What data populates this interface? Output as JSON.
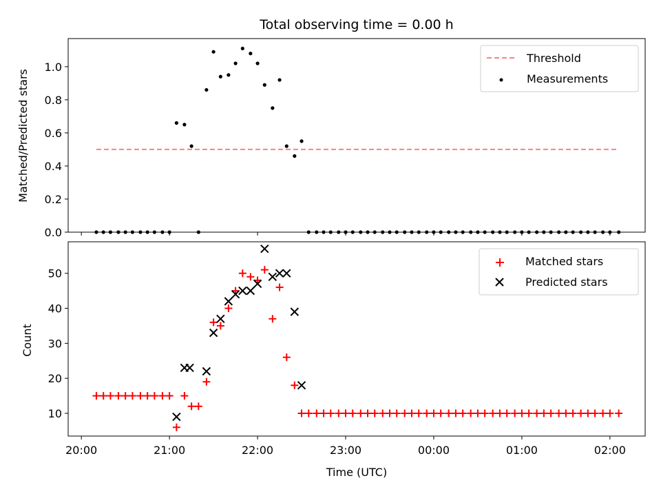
{
  "chart_data": [
    {
      "type": "scatter",
      "title": "Total observing time = 0.00 h",
      "xlabel": "",
      "ylabel": "Matched/Predicted stars",
      "x_unit": "hours since 20:00 UTC",
      "xlim": [
        -0.15,
        6.4
      ],
      "ylim": [
        0,
        1.17
      ],
      "yticks": [
        0.0,
        0.2,
        0.4,
        0.6,
        0.8,
        1.0
      ],
      "ytick_labels": [
        "0.0",
        "0.2",
        "0.4",
        "0.6",
        "0.8",
        "1.0"
      ],
      "grid": false,
      "legend": "top-right",
      "threshold": {
        "name": "Threshold",
        "value": 0.5,
        "x": [
          0.17,
          6.1
        ],
        "color": "#ff7f7f"
      },
      "series": [
        {
          "name": "Measurements",
          "color": "#000000",
          "marker": "dot",
          "x": [
            0.17,
            0.25,
            0.33,
            0.42,
            0.5,
            0.58,
            0.67,
            0.75,
            0.83,
            0.92,
            1.0,
            1.08,
            1.17,
            1.25,
            1.33,
            1.42,
            1.5,
            1.58,
            1.67,
            1.75,
            1.83,
            1.92,
            2.0,
            2.08,
            2.17,
            2.25,
            2.33,
            2.42,
            2.5,
            2.58,
            2.67,
            2.75,
            2.83,
            2.92,
            3.0,
            3.08,
            3.17,
            3.25,
            3.33,
            3.42,
            3.5,
            3.58,
            3.67,
            3.75,
            3.83,
            3.92,
            4.0,
            4.08,
            4.17,
            4.25,
            4.33,
            4.42,
            4.5,
            4.58,
            4.67,
            4.75,
            4.83,
            4.92,
            5.0,
            5.08,
            5.17,
            5.25,
            5.33,
            5.42,
            5.5,
            5.58,
            5.67,
            5.75,
            5.83,
            5.92,
            6.0,
            6.1
          ],
          "y": [
            0,
            0,
            0,
            0,
            0,
            0,
            0,
            0,
            0,
            0,
            0,
            0.66,
            0.65,
            0.52,
            0,
            0.86,
            1.09,
            0.94,
            0.95,
            1.02,
            1.11,
            1.08,
            1.02,
            0.89,
            0.75,
            0.92,
            0.52,
            0.46,
            0.55,
            0,
            0,
            0,
            0,
            0,
            0,
            0,
            0,
            0,
            0,
            0,
            0,
            0,
            0,
            0,
            0,
            0,
            0,
            0,
            0,
            0,
            0,
            0,
            0,
            0,
            0,
            0,
            0,
            0,
            0,
            0,
            0,
            0,
            0,
            0,
            0,
            0,
            0,
            0,
            0,
            0,
            0,
            0
          ]
        }
      ]
    },
    {
      "type": "scatter",
      "title": "",
      "xlabel": "Time (UTC)",
      "ylabel": "Count",
      "x_unit": "hours since 20:00 UTC",
      "xlim": [
        -0.15,
        6.4
      ],
      "ylim": [
        3.5,
        59
      ],
      "xticks": [
        0,
        1,
        2,
        3,
        4,
        5,
        6
      ],
      "xtick_labels": [
        "20:00",
        "21:00",
        "22:00",
        "23:00",
        "00:00",
        "01:00",
        "02:00"
      ],
      "yticks": [
        10,
        20,
        30,
        40,
        50
      ],
      "ytick_labels": [
        "10",
        "20",
        "30",
        "40",
        "50"
      ],
      "grid": false,
      "legend": "top-right",
      "series": [
        {
          "name": "Matched stars",
          "color": "#ff0000",
          "marker": "plus",
          "x": [
            0.17,
            0.25,
            0.33,
            0.42,
            0.5,
            0.58,
            0.67,
            0.75,
            0.83,
            0.92,
            1.0,
            1.08,
            1.17,
            1.25,
            1.33,
            1.42,
            1.5,
            1.58,
            1.67,
            1.75,
            1.83,
            1.92,
            2.0,
            2.08,
            2.17,
            2.25,
            2.33,
            2.42,
            2.5,
            2.58,
            2.67,
            2.75,
            2.83,
            2.92,
            3.0,
            3.08,
            3.17,
            3.25,
            3.33,
            3.42,
            3.5,
            3.58,
            3.67,
            3.75,
            3.83,
            3.92,
            4.0,
            4.08,
            4.17,
            4.25,
            4.33,
            4.42,
            4.5,
            4.58,
            4.67,
            4.75,
            4.83,
            4.92,
            5.0,
            5.08,
            5.17,
            5.25,
            5.33,
            5.42,
            5.5,
            5.58,
            5.67,
            5.75,
            5.83,
            5.92,
            6.0,
            6.1
          ],
          "y": [
            15,
            15,
            15,
            15,
            15,
            15,
            15,
            15,
            15,
            15,
            15,
            6,
            15,
            12,
            12,
            19,
            36,
            35,
            40,
            45,
            50,
            49,
            48,
            51,
            37,
            46,
            26,
            18,
            10,
            10,
            10,
            10,
            10,
            10,
            10,
            10,
            10,
            10,
            10,
            10,
            10,
            10,
            10,
            10,
            10,
            10,
            10,
            10,
            10,
            10,
            10,
            10,
            10,
            10,
            10,
            10,
            10,
            10,
            10,
            10,
            10,
            10,
            10,
            10,
            10,
            10,
            10,
            10,
            10,
            10,
            10,
            10
          ]
        },
        {
          "name": "Predicted stars",
          "color": "#000000",
          "marker": "x",
          "x": [
            1.08,
            1.17,
            1.23,
            1.42,
            1.5,
            1.58,
            1.67,
            1.75,
            1.83,
            1.92,
            2.0,
            2.08,
            2.17,
            2.25,
            2.33,
            2.42,
            2.5
          ],
          "y": [
            9,
            23,
            23,
            22,
            33,
            37,
            42,
            44,
            45,
            45,
            47,
            57,
            49,
            50,
            50,
            39,
            18
          ]
        }
      ]
    }
  ]
}
